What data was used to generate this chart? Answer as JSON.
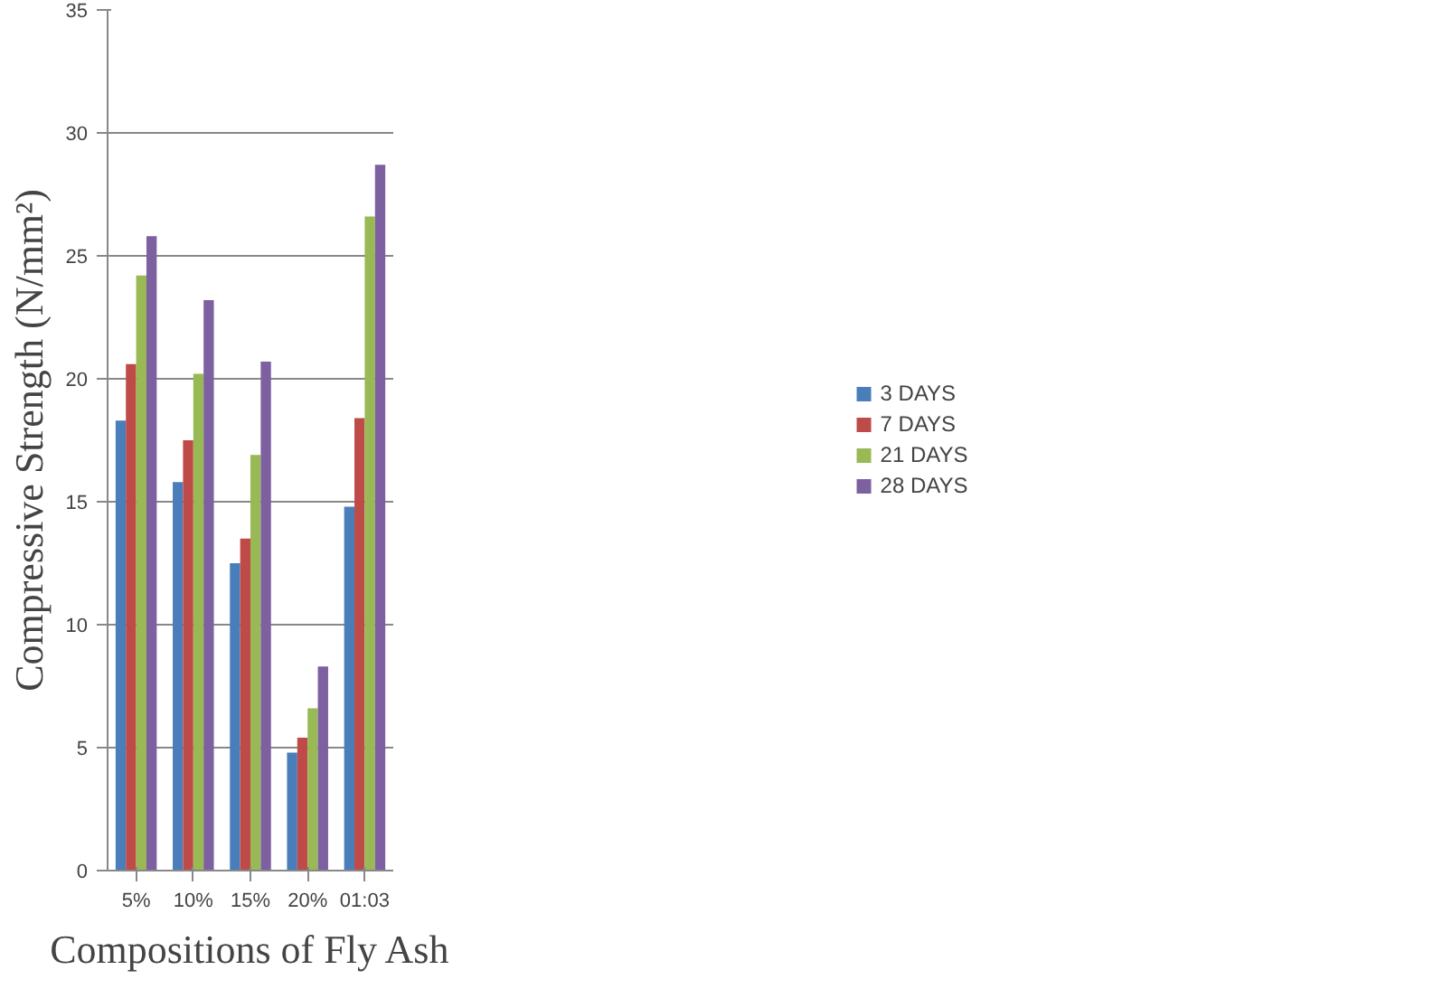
{
  "chart_data": {
    "type": "bar",
    "xlabel": "Compositions of Fly Ash",
    "ylabel": "Compressive Strength (N/mm²)",
    "categories": [
      "5%",
      "10%",
      "15%",
      "20%",
      "01:03"
    ],
    "series": [
      {
        "name": "3 DAYS",
        "color": "#4a7ebb",
        "values": [
          18.3,
          15.8,
          12.5,
          4.8,
          14.8
        ]
      },
      {
        "name": "7 DAYS",
        "color": "#be4b48",
        "values": [
          20.6,
          17.5,
          13.5,
          5.4,
          18.4
        ]
      },
      {
        "name": "21 DAYS",
        "color": "#98b954",
        "values": [
          24.2,
          20.2,
          16.9,
          6.6,
          26.6
        ]
      },
      {
        "name": "28 DAYS",
        "color": "#7d60a0",
        "values": [
          25.8,
          23.2,
          20.7,
          8.3,
          28.7
        ]
      }
    ],
    "ylim": [
      0,
      35
    ],
    "yticks": [
      0,
      5,
      10,
      15,
      20,
      25,
      30,
      35
    ],
    "grid": "y",
    "legend": "right"
  }
}
